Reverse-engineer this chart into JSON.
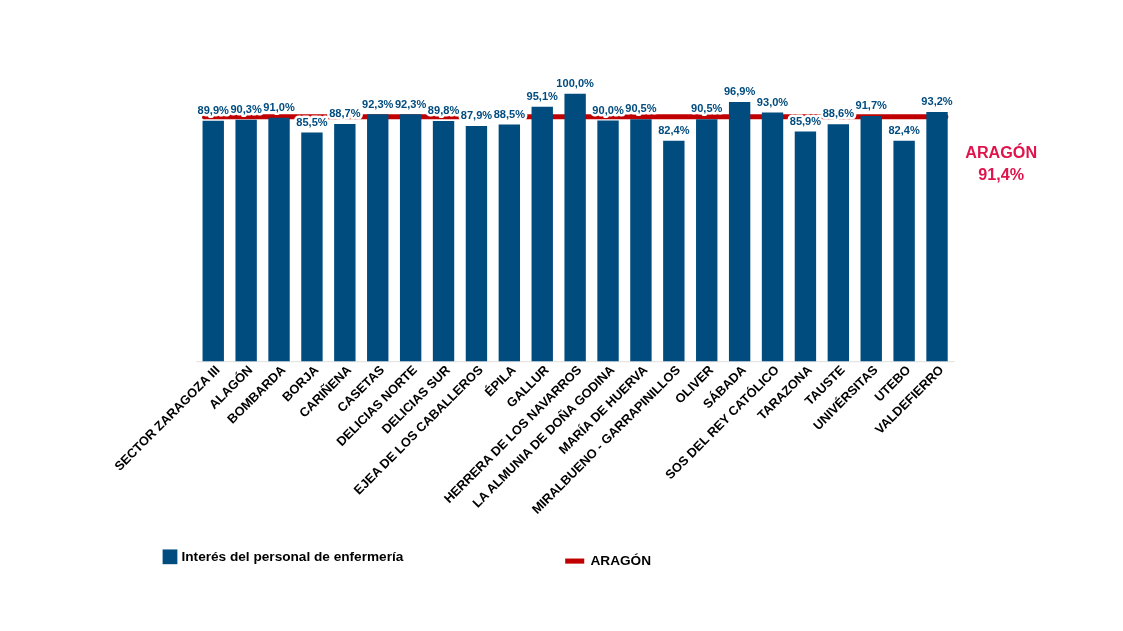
{
  "chart_data": {
    "type": "bar",
    "categories": [
      "SECTOR ZARAGOZA III",
      "ALAGÓN",
      "BOMBARDA",
      "BORJA",
      "CARIÑENA",
      "CASETAS",
      "DELICIAS NORTE",
      "DELICIAS SUR",
      "EJEA DE LOS CABALLEROS",
      "ÉPILA",
      "GALLUR",
      "HERRERA DE LOS NAVARROS",
      "LA ALMUNIA DE DOÑA GODINA",
      "MARÍA DE HUERVA",
      "MIRALBUENO - GARRAPINILLOS",
      "OLIVER",
      "SÁBADA",
      "SOS DEL REY CATÓLICO",
      "TARAZONA",
      "TAUSTE",
      "UNIVÉRSITAS",
      "UTEBO",
      "VALDEFIERRO"
    ],
    "series": [
      {
        "name": "Interés del personal de enfermería",
        "color": "#004c7f",
        "values": [
          89.9,
          90.3,
          91.0,
          85.5,
          88.7,
          92.3,
          92.3,
          89.8,
          87.9,
          88.5,
          95.1,
          100.0,
          90.0,
          90.5,
          82.4,
          90.5,
          96.9,
          93.0,
          85.9,
          88.6,
          91.7,
          82.4,
          93.2
        ],
        "value_labels": [
          "89,9%",
          "90,3%",
          "91,0%",
          "85,5%",
          "88,7%",
          "92,3%",
          "92,3%",
          "89,8%",
          "87,9%",
          "88,5%",
          "95,1%",
          "100,0%",
          "90,0%",
          "90,5%",
          "82,4%",
          "90,5%",
          "96,9%",
          "93,0%",
          "85,9%",
          "88,6%",
          "91,7%",
          "82,4%",
          "93,2%"
        ]
      }
    ],
    "ylim": [
      0,
      100
    ],
    "tick_labels": "x",
    "grid": false,
    "legend": "bottom",
    "ref_lines": [
      {
        "axis": "y",
        "value": 91.4,
        "label": "ARAGÓN",
        "color": "#c00000"
      }
    ],
    "annotations": [
      "ARAGÓN\n91,4%"
    ]
  }
}
